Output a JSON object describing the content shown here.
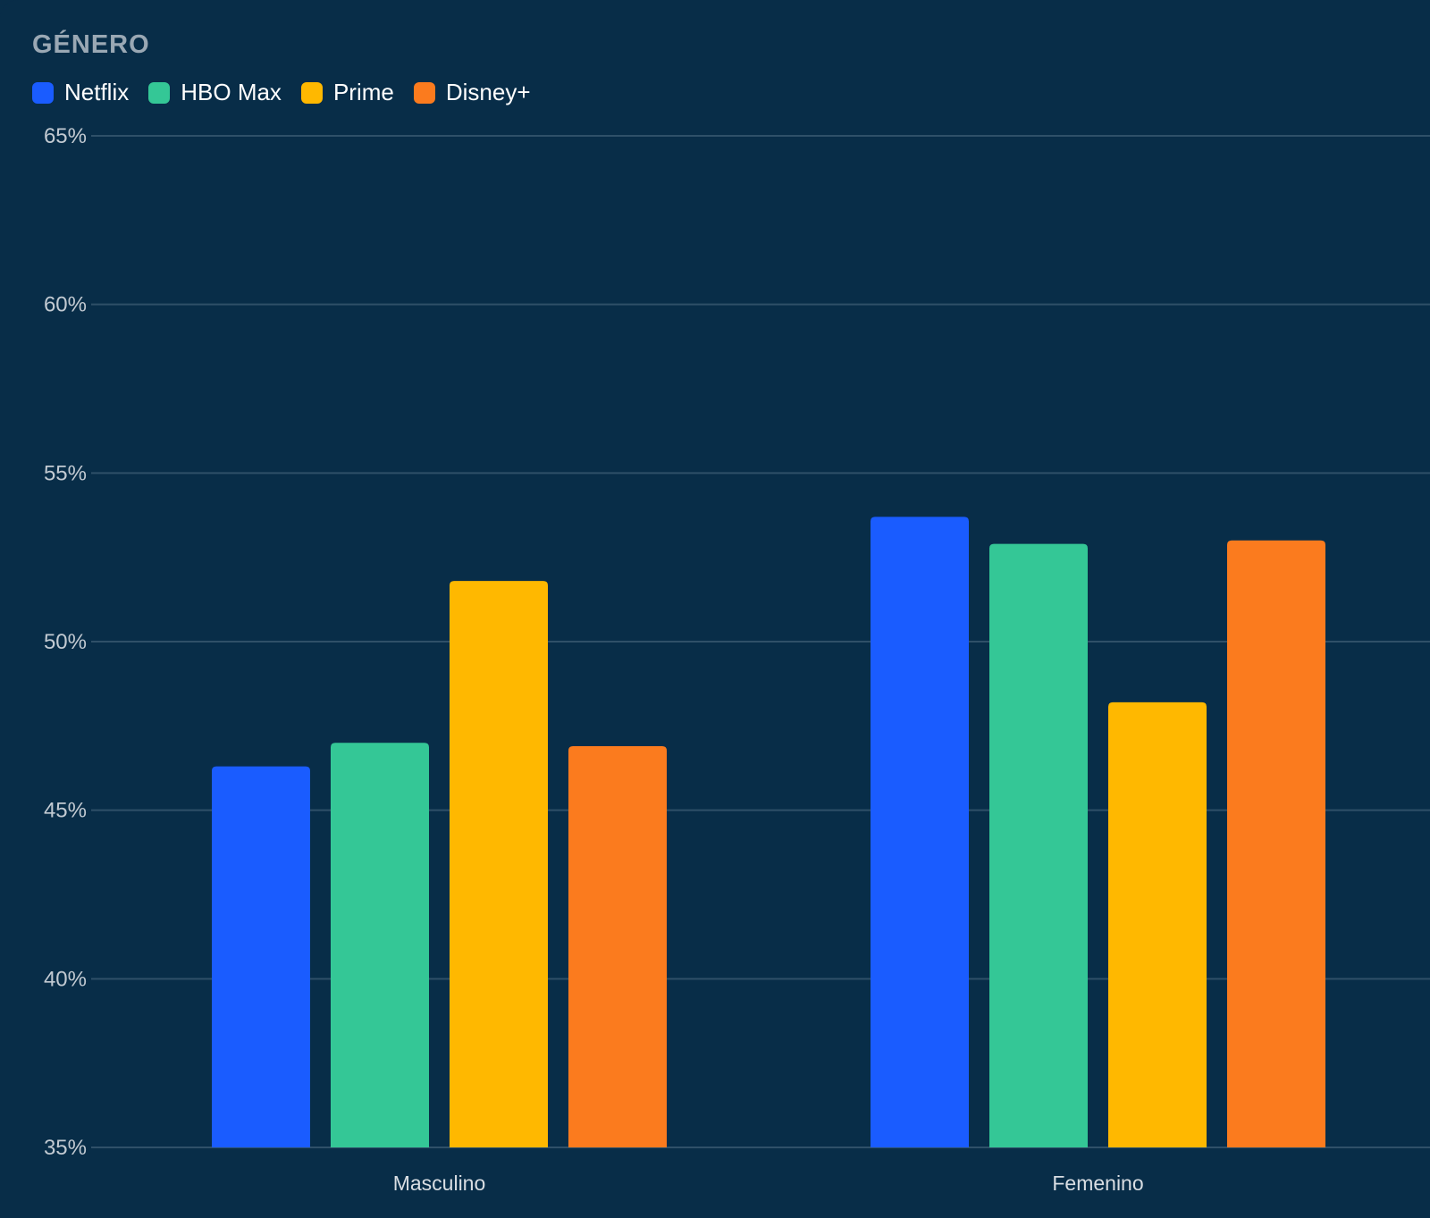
{
  "chart_data": {
    "type": "bar",
    "title": "GÉNERO",
    "categories": [
      "Masculino",
      "Femenino"
    ],
    "series": [
      {
        "name": "Netflix",
        "color": "#1a5cff",
        "values": [
          46.3,
          53.7
        ]
      },
      {
        "name": "HBO Max",
        "color": "#34c796",
        "values": [
          47.0,
          52.9
        ]
      },
      {
        "name": "Prime",
        "color": "#ffb800",
        "values": [
          51.8,
          48.2
        ]
      },
      {
        "name": "Disney+",
        "color": "#fb7b1e",
        "values": [
          46.9,
          53.0
        ]
      }
    ],
    "ylim": [
      35,
      65
    ],
    "yticks": [
      "35%",
      "40%",
      "45%",
      "50%",
      "55%",
      "60%",
      "65%"
    ],
    "ytick_values": [
      35,
      40,
      45,
      50,
      55,
      60,
      65
    ],
    "grid": true,
    "legend": "top-left"
  }
}
